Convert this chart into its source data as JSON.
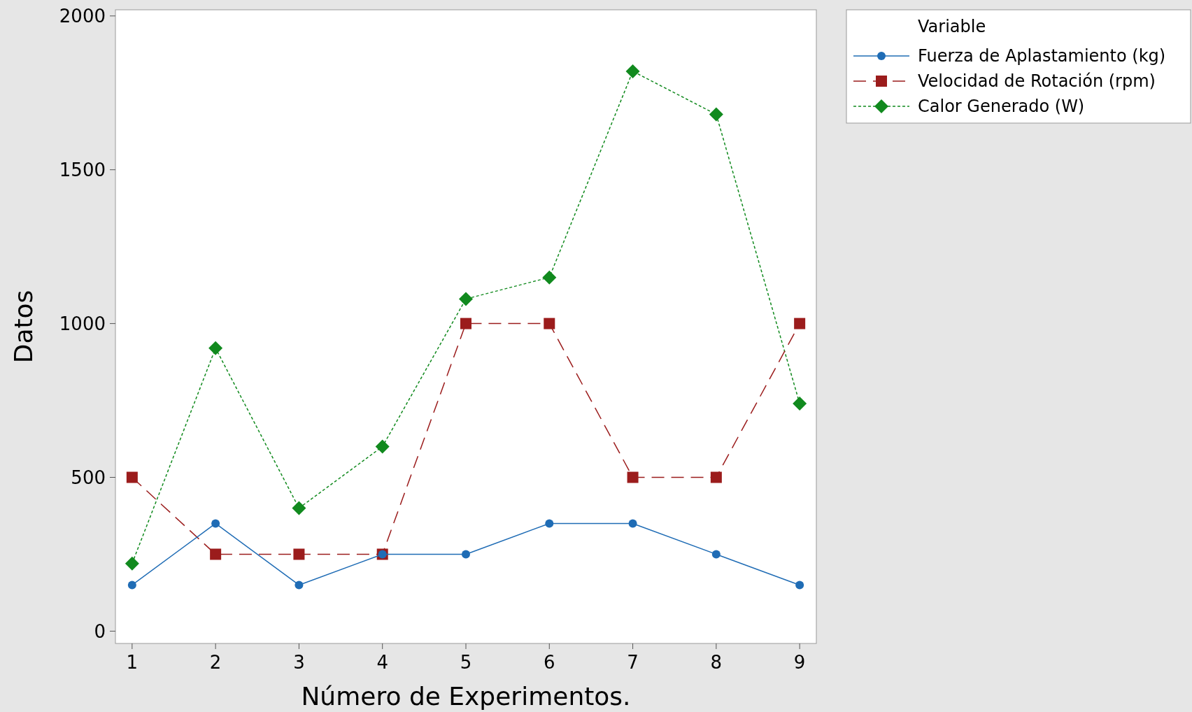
{
  "chart_data": {
    "type": "line",
    "xlabel": "Número de Experimentos.",
    "ylabel": "Datos",
    "legend_title": "Variable",
    "legend": "top right",
    "x": [
      1,
      2,
      3,
      4,
      5,
      6,
      7,
      8,
      9
    ],
    "xlim": [
      0.8,
      9.2
    ],
    "xticks": [
      1,
      2,
      3,
      4,
      5,
      6,
      7,
      8,
      9
    ],
    "ylim": [
      -40,
      2020
    ],
    "yticks": [
      0,
      500,
      1000,
      1500,
      2000
    ],
    "series": [
      {
        "name": "Fuerza de Aplastamiento (kg)",
        "color": "#1f6cb5",
        "marker": "circle",
        "line_style": "solid",
        "values": [
          150,
          350,
          150,
          250,
          250,
          350,
          350,
          250,
          150
        ]
      },
      {
        "name": "Velocidad de Rotación (rpm)",
        "color": "#9b1c1c",
        "marker": "square",
        "line_style": "dashed",
        "values": [
          500,
          250,
          250,
          250,
          1000,
          1000,
          500,
          500,
          1000
        ]
      },
      {
        "name": "Calor Generado (W)",
        "color": "#118a1e",
        "marker": "diamond",
        "line_style": "dotted",
        "values": [
          220,
          920,
          400,
          600,
          1080,
          1150,
          1820,
          1680,
          740
        ]
      }
    ]
  }
}
